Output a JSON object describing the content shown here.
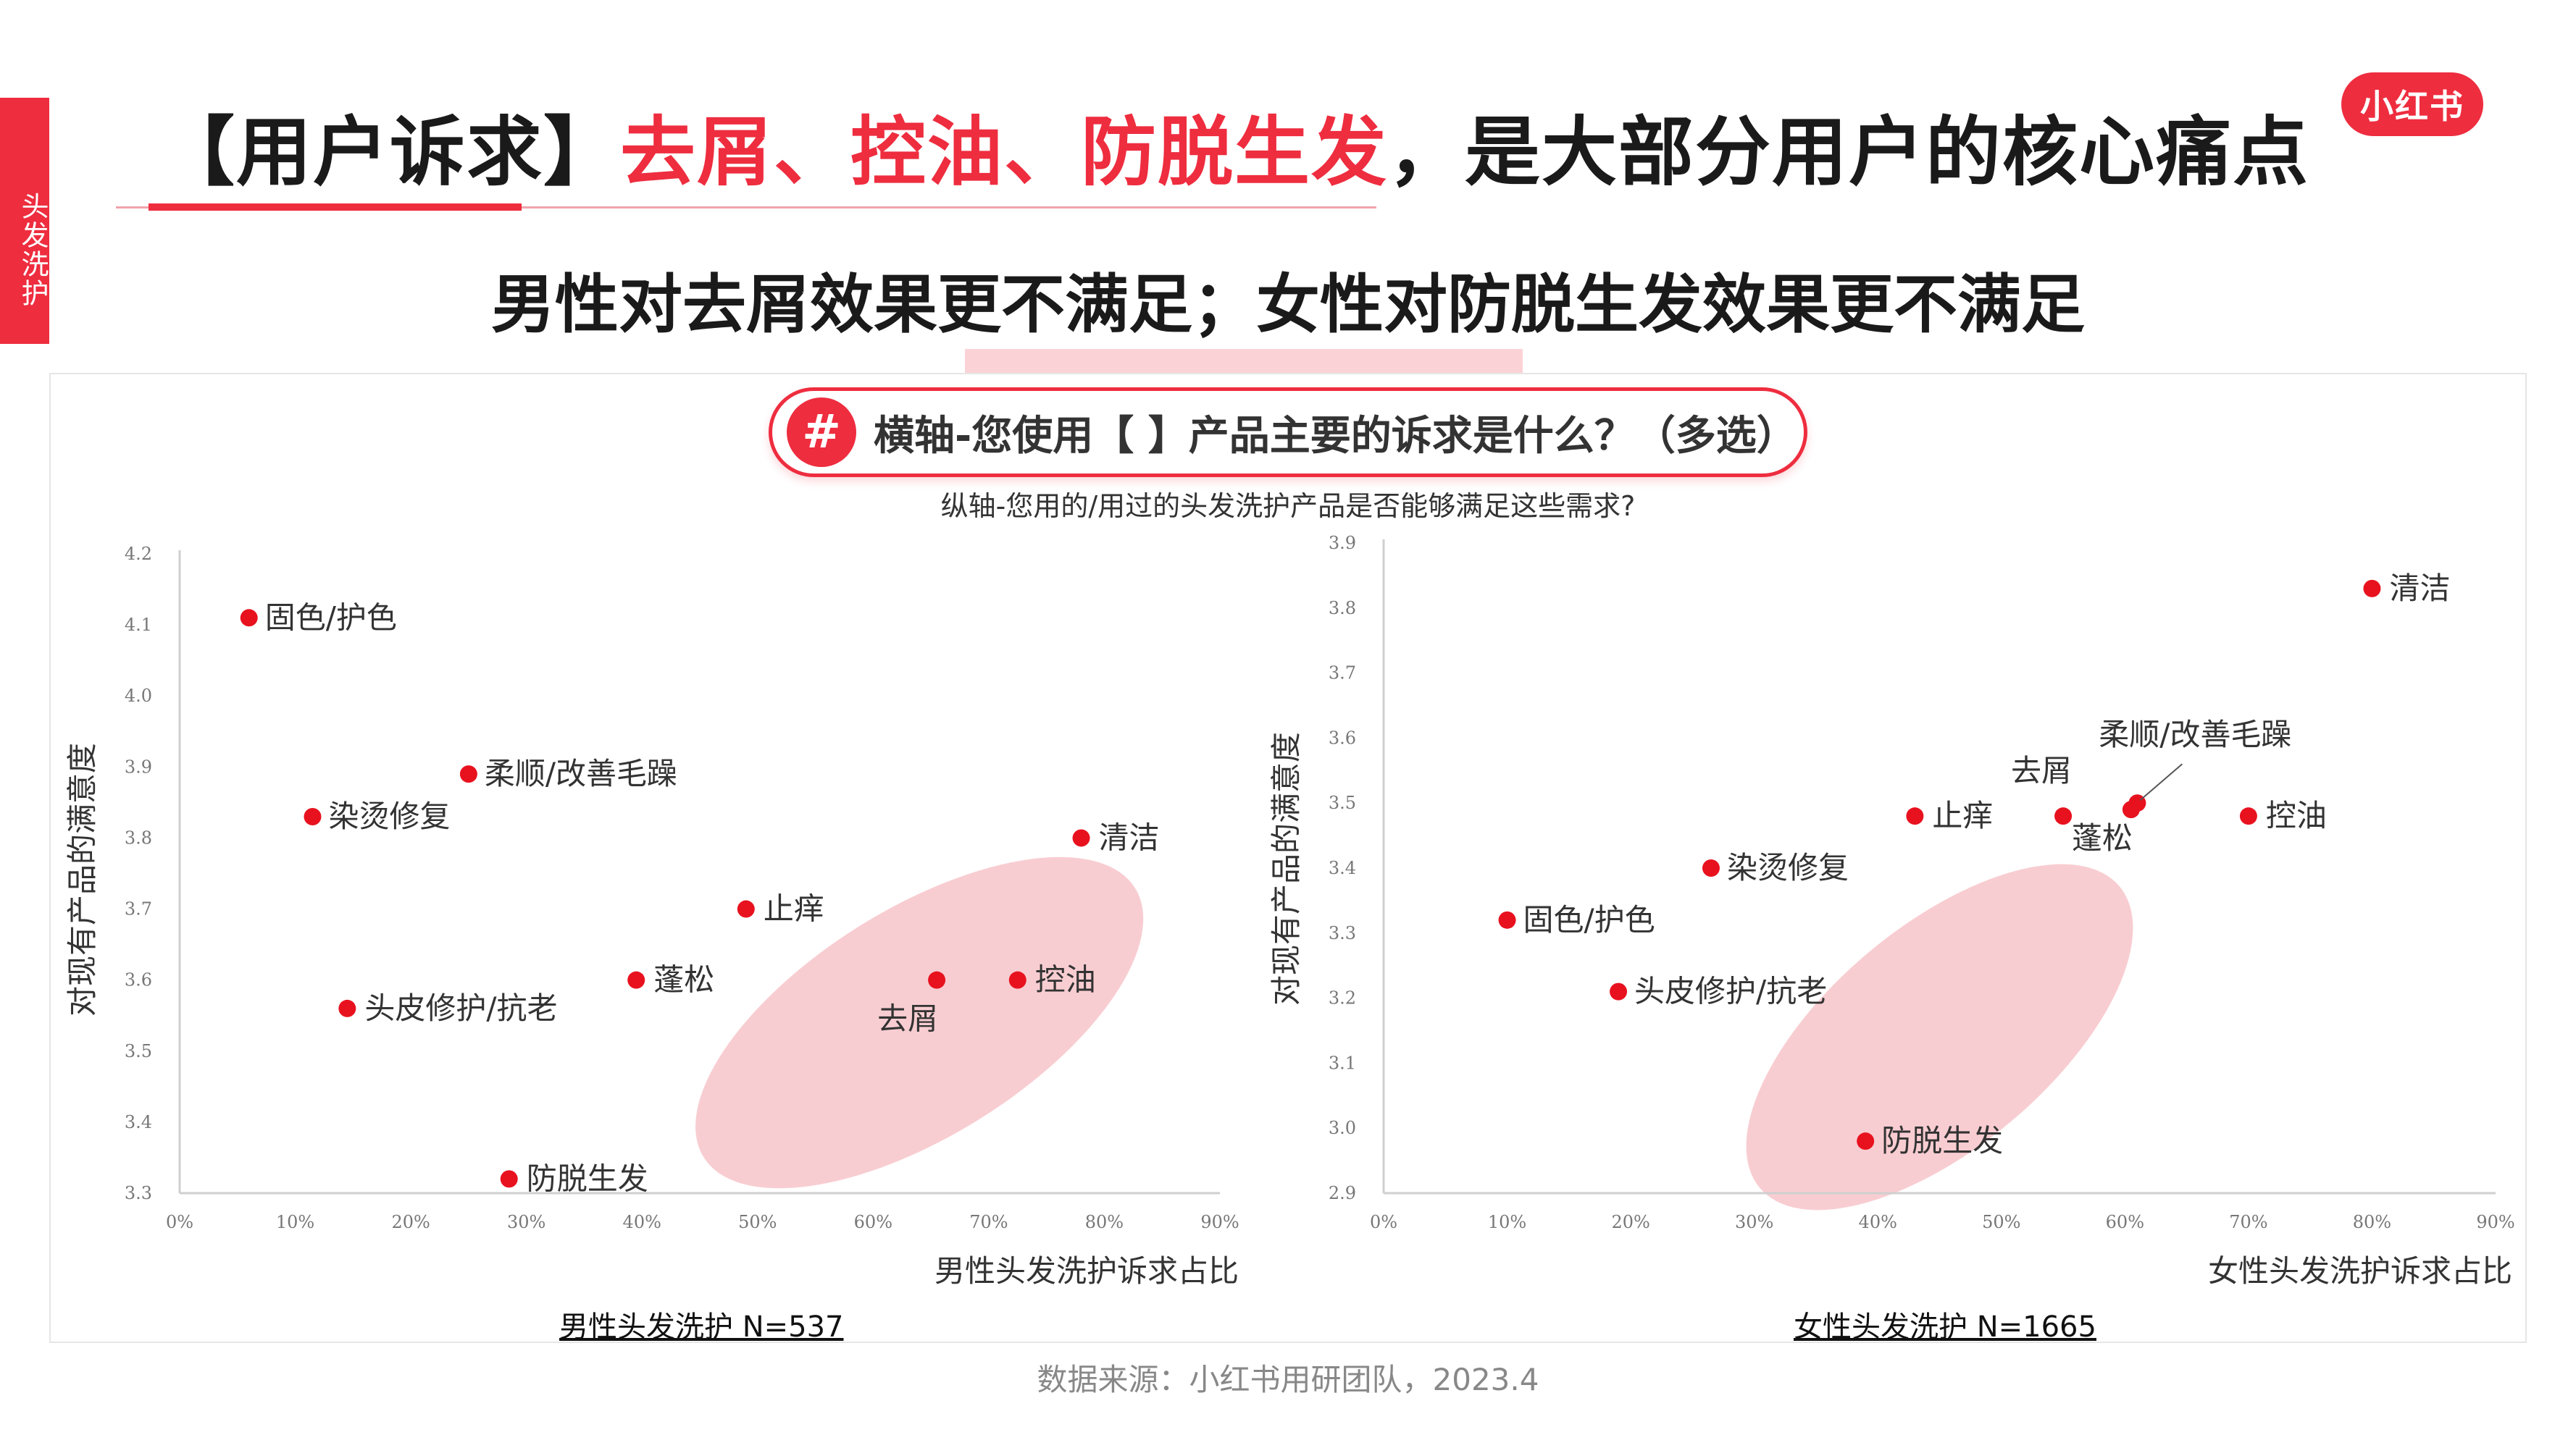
{
  "side_tab": {
    "label": "头发洗护"
  },
  "header": {
    "title_prefix": "【用户诉求】",
    "title_highlight": "去屑、控油、防脱生发",
    "title_suffix": "，是大部分用户的核心痛点",
    "logo": "小红书",
    "subtitle": "男性对去屑效果更不满足；女性对防脱生发效果更不满足"
  },
  "pill": {
    "hash": "#",
    "text": "横轴-您使用【 】产品主要的诉求是什么？（多选）"
  },
  "caption": "纵轴-您用的/用过的头发洗护产品是否能够满足这些需求?",
  "colors": {
    "accent": "#ee2d3f",
    "dot": "#e8121f",
    "ellipse": "#f5b8bd"
  },
  "chart_data": [
    {
      "type": "scatter",
      "title": "男性头发洗护 N=537",
      "xlabel": "男性头发洗护诉求占比",
      "ylabel": "对现有产品的满意度",
      "xlim": [
        0,
        90
      ],
      "ylim": [
        3.3,
        4.2
      ],
      "x_ticks": [
        "0%",
        "10%",
        "20%",
        "30%",
        "40%",
        "50%",
        "60%",
        "70%",
        "80%",
        "90%"
      ],
      "y_ticks": [
        "3.3",
        "3.4",
        "3.5",
        "3.6",
        "3.7",
        "3.8",
        "3.9",
        "4.0",
        "4.1",
        "4.2"
      ],
      "grid": false,
      "points": [
        {
          "label": "固色/护色",
          "x": 6,
          "y": 4.11
        },
        {
          "label": "柔顺/改善毛躁",
          "x": 25,
          "y": 3.89
        },
        {
          "label": "染烫修复",
          "x": 11.5,
          "y": 3.83
        },
        {
          "label": "清洁",
          "x": 78,
          "y": 3.8
        },
        {
          "label": "止痒",
          "x": 49,
          "y": 3.7
        },
        {
          "label": "蓬松",
          "x": 39.5,
          "y": 3.6
        },
        {
          "label": "控油",
          "x": 72.5,
          "y": 3.6
        },
        {
          "label": "去屑",
          "x": 65.5,
          "y": 3.6
        },
        {
          "label": "头皮修护/抗老",
          "x": 14.5,
          "y": 3.56
        },
        {
          "label": "防脱生发",
          "x": 28.5,
          "y": 3.32
        }
      ],
      "highlight_region": {
        "cx": 64,
        "cy": 3.54,
        "rx": 22,
        "ry": 0.16,
        "angle": -32
      }
    },
    {
      "type": "scatter",
      "title": "女性头发洗护 N=1665",
      "xlabel": "女性头发洗护诉求占比",
      "ylabel": "对现有产品的满意度",
      "xlim": [
        0,
        90
      ],
      "ylim": [
        2.9,
        3.9
      ],
      "x_ticks": [
        "0%",
        "10%",
        "20%",
        "30%",
        "40%",
        "50%",
        "60%",
        "70%",
        "80%",
        "90%"
      ],
      "y_ticks": [
        "2.9",
        "3.0",
        "3.1",
        "3.2",
        "3.3",
        "3.4",
        "3.5",
        "3.6",
        "3.7",
        "3.8",
        "3.9"
      ],
      "grid": false,
      "points": [
        {
          "label": "清洁",
          "x": 80,
          "y": 3.83
        },
        {
          "label": "柔顺/改善毛躁",
          "x": 61,
          "y": 3.5
        },
        {
          "label": "去屑",
          "x": 55,
          "y": 3.48
        },
        {
          "label": "蓬松",
          "x": 60.5,
          "y": 3.49
        },
        {
          "label": "控油",
          "x": 70,
          "y": 3.48
        },
        {
          "label": "止痒",
          "x": 43,
          "y": 3.48
        },
        {
          "label": "染烫修复",
          "x": 26.5,
          "y": 3.4
        },
        {
          "label": "固色/护色",
          "x": 10,
          "y": 3.32
        },
        {
          "label": "头皮修护/抗老",
          "x": 19,
          "y": 3.21
        },
        {
          "label": "防脱生发",
          "x": 39,
          "y": 2.98
        }
      ],
      "highlight_region": {
        "cx": 45,
        "cy": 3.14,
        "rx": 19,
        "ry": 0.17,
        "angle": -40
      }
    }
  ],
  "footer": {
    "source": "数据来源：小红书用研团队，2023.4"
  }
}
